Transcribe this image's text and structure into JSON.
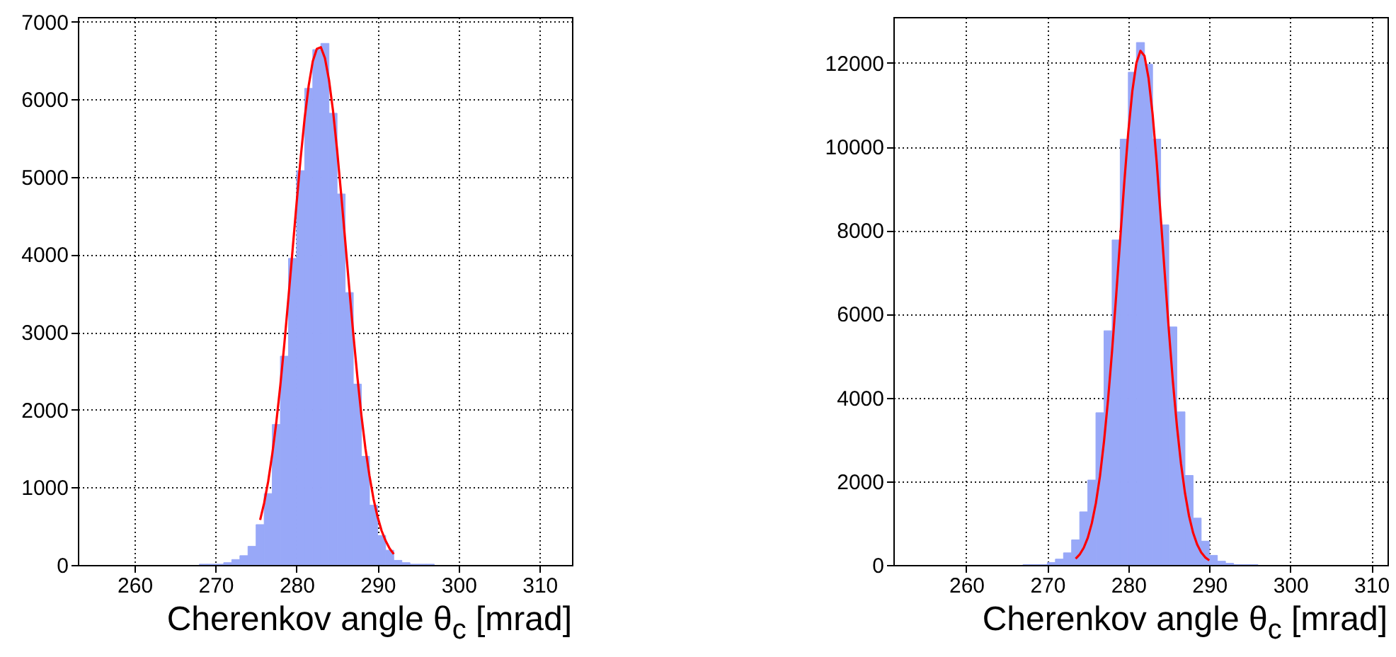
{
  "chart_data": [
    {
      "type": "histogram",
      "xlabel": "Cherenkov angle θ$_{c}$ [mrad]",
      "xlim": [
        253,
        314
      ],
      "ylim": [
        0,
        7060
      ],
      "xticks": [
        260,
        270,
        280,
        290,
        300,
        310
      ],
      "yticks": [
        0,
        1000,
        2000,
        3000,
        4000,
        5000,
        6000,
        7000
      ],
      "grid": true,
      "series": [
        {
          "type": "histogram",
          "color": "#98a8f8",
          "bins": [
            268,
            269,
            270,
            271,
            272,
            273,
            274,
            275,
            276,
            277,
            278,
            279,
            280,
            281,
            282,
            283,
            284,
            285,
            286,
            287,
            288,
            289,
            290,
            291,
            292,
            293,
            294,
            295,
            296,
            297
          ],
          "values": [
            10,
            10,
            10,
            30,
            70,
            120,
            240,
            520,
            920,
            1810,
            2690,
            3950,
            5080,
            6140,
            6640,
            6720,
            5820,
            4780,
            3510,
            2330,
            1400,
            770,
            380,
            190,
            60,
            30,
            10,
            10,
            10
          ]
        },
        {
          "type": "line",
          "color": "#ff0000",
          "x": [
            275.5,
            276,
            276.5,
            277,
            277.5,
            278,
            278.5,
            279,
            279.5,
            280,
            280.5,
            281,
            281.5,
            282,
            282.5,
            283,
            283.5,
            284,
            284.5,
            285,
            285.5,
            286,
            286.5,
            287,
            287.5,
            288,
            288.5,
            289,
            289.5,
            290,
            290.5,
            291,
            291.5,
            292
          ],
          "values": [
            580,
            800,
            1080,
            1430,
            1840,
            2320,
            2860,
            3450,
            4050,
            4660,
            5240,
            5760,
            6180,
            6490,
            6650,
            6670,
            6530,
            6250,
            5850,
            5350,
            4780,
            4180,
            3570,
            2980,
            2430,
            1930,
            1500,
            1150,
            850,
            620,
            440,
            310,
            210,
            140
          ]
        }
      ]
    },
    {
      "type": "histogram",
      "xlabel": "Cherenkov angle θ$_{c}$ [mrad]",
      "xlim": [
        251,
        312
      ],
      "ylim": [
        0,
        13100
      ],
      "xticks": [
        260,
        270,
        280,
        290,
        300,
        310
      ],
      "yticks": [
        0,
        2000,
        4000,
        6000,
        8000,
        10000,
        12000
      ],
      "grid": true,
      "series": [
        {
          "type": "histogram",
          "color": "#98a8f8",
          "bins": [
            267,
            268,
            269,
            270,
            271,
            272,
            273,
            274,
            275,
            276,
            277,
            278,
            279,
            280,
            281,
            282,
            283,
            284,
            285,
            286,
            287,
            288,
            289,
            290,
            291,
            292,
            293,
            294,
            295,
            296
          ],
          "values": [
            10,
            10,
            10,
            60,
            140,
            290,
            600,
            1270,
            2030,
            3640,
            5600,
            7770,
            10180,
            11780,
            12490,
            11970,
            10180,
            8130,
            5690,
            3660,
            2140,
            1120,
            570,
            230,
            90,
            40,
            10,
            10,
            10
          ]
        },
        {
          "type": "line",
          "color": "#ff0000",
          "x": [
            273.5,
            274,
            274.5,
            275,
            275.5,
            276,
            276.5,
            277,
            277.5,
            278,
            278.5,
            279,
            279.5,
            280,
            280.5,
            281,
            281.5,
            282,
            282.5,
            283,
            283.5,
            284,
            284.5,
            285,
            285.5,
            286,
            286.5,
            287,
            287.5,
            288,
            288.5,
            289,
            289.5,
            290
          ],
          "values": [
            150,
            250,
            410,
            650,
            1000,
            1480,
            2120,
            2950,
            3950,
            5120,
            6430,
            7790,
            9130,
            10350,
            11330,
            12000,
            12290,
            12170,
            11640,
            10780,
            9640,
            8330,
            6970,
            5630,
            4400,
            3330,
            2430,
            1720,
            1170,
            770,
            490,
            300,
            180,
            110
          ]
        }
      ]
    }
  ]
}
